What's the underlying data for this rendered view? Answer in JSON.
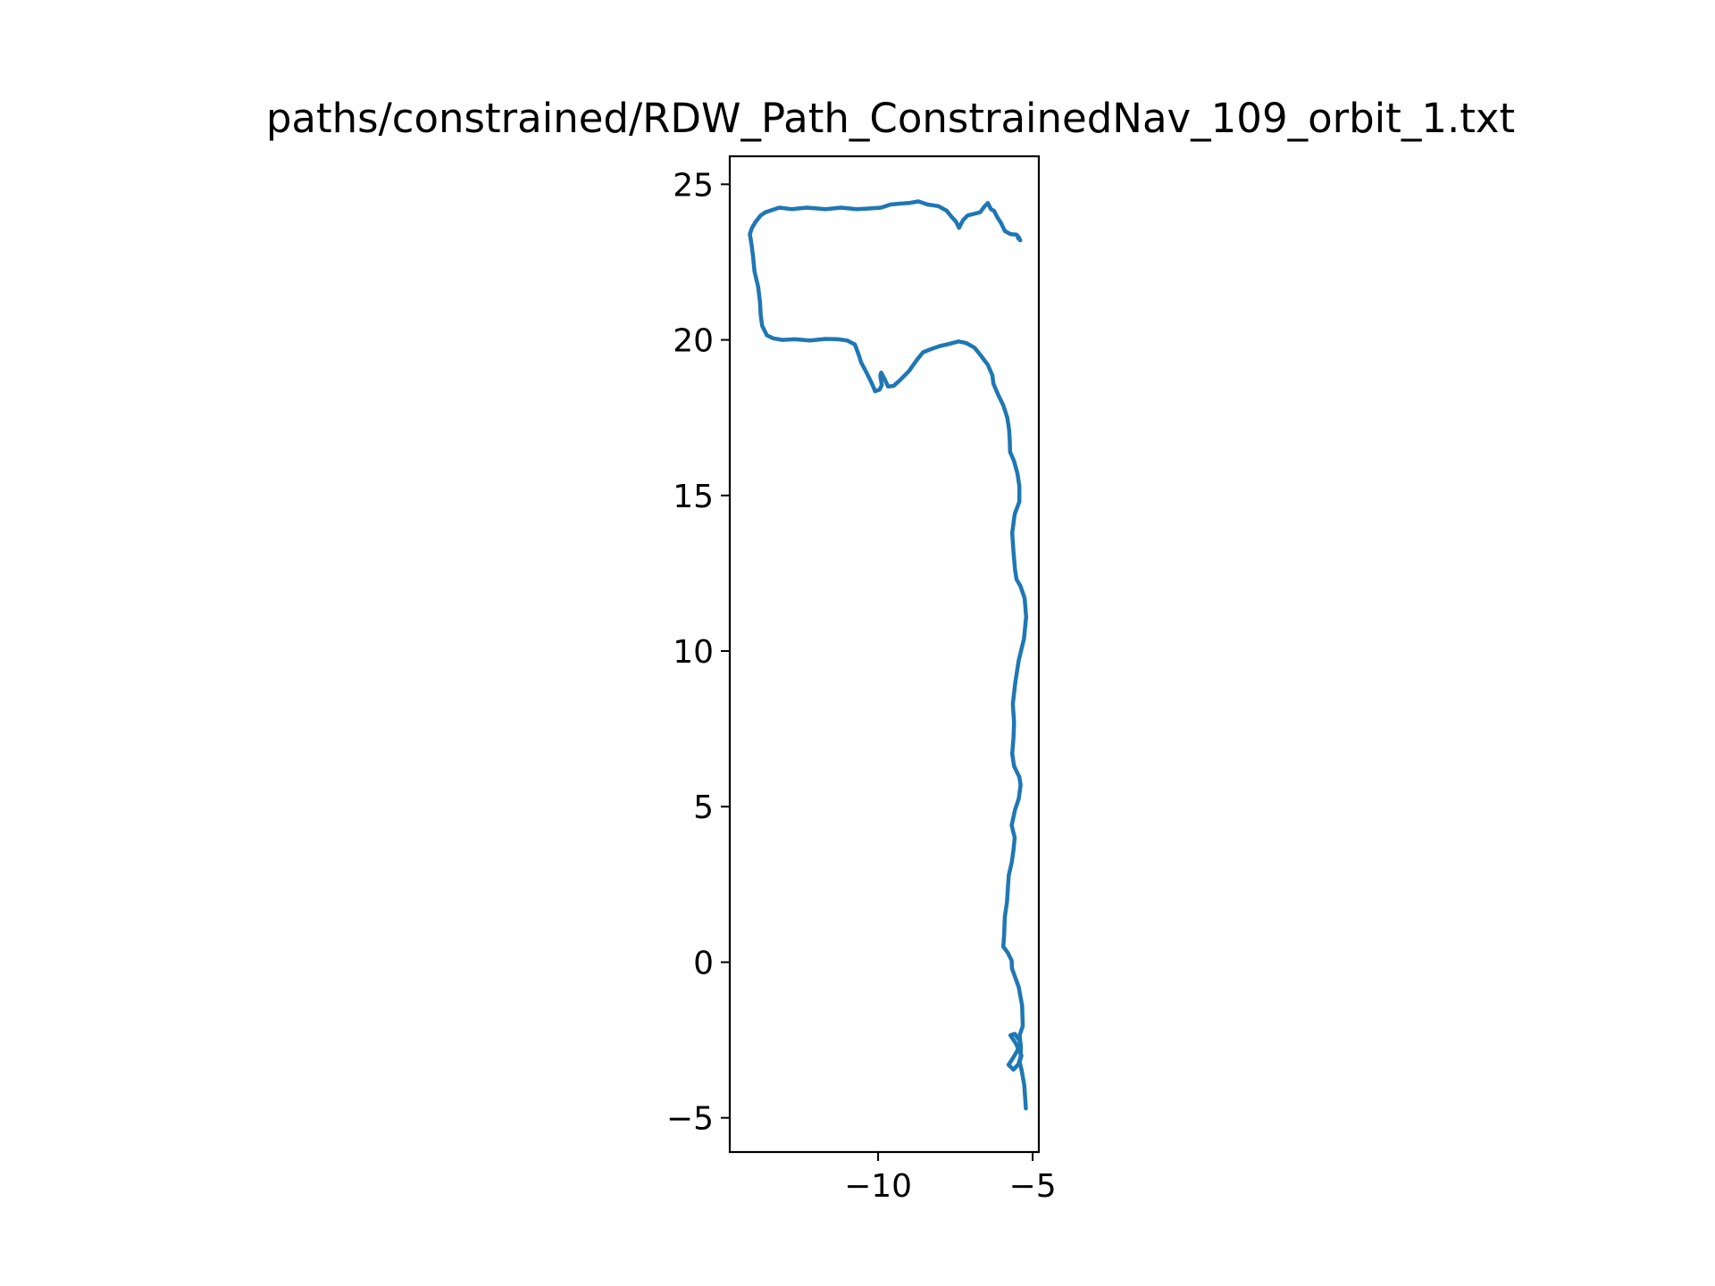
{
  "chart_data": {
    "type": "line",
    "title": "paths/constrained/RDW_Path_ConstrainedNav_109_orbit_1.txt",
    "xlabel": "",
    "ylabel": "",
    "xlim": [
      -14.8,
      -4.8
    ],
    "ylim": [
      -6.1,
      25.9
    ],
    "x_ticks": [
      {
        "value": -10,
        "label": "−10"
      },
      {
        "value": -5,
        "label": "−5"
      }
    ],
    "y_ticks": [
      {
        "value": -5,
        "label": "−5"
      },
      {
        "value": 0,
        "label": "0"
      },
      {
        "value": 5,
        "label": "5"
      },
      {
        "value": 10,
        "label": "10"
      },
      {
        "value": 15,
        "label": "15"
      },
      {
        "value": 20,
        "label": "20"
      },
      {
        "value": 25,
        "label": "25"
      }
    ],
    "grid": false,
    "legend": "none",
    "series": [
      {
        "color": "#1f77b4",
        "x": [
          -5.22,
          -5.27,
          -5.36,
          -5.42,
          -5.36,
          -5.45,
          -5.55,
          -5.72,
          -5.58,
          -5.4,
          -5.5,
          -5.65,
          -5.78,
          -5.62,
          -5.46,
          -5.39,
          -5.38,
          -5.42,
          -5.32,
          -5.34,
          -5.45,
          -5.67,
          -5.68,
          -5.8,
          -5.95,
          -5.92,
          -5.9,
          -5.83,
          -5.8,
          -5.77,
          -5.68,
          -5.62,
          -5.58,
          -5.68,
          -5.57,
          -5.45,
          -5.39,
          -5.43,
          -5.6,
          -5.66,
          -5.62,
          -5.6,
          -5.64,
          -5.56,
          -5.45,
          -5.28,
          -5.21,
          -5.26,
          -5.4,
          -5.52,
          -5.57,
          -5.62,
          -5.66,
          -5.58,
          -5.43,
          -5.43,
          -5.49,
          -5.6,
          -5.73,
          -5.74,
          -5.76,
          -5.82,
          -5.95,
          -6.1,
          -6.27,
          -6.3,
          -6.45,
          -6.68,
          -6.88,
          -7.15,
          -7.4,
          -7.7,
          -8.0,
          -8.3,
          -8.55,
          -8.75,
          -9.0,
          -9.3,
          -9.5,
          -9.68,
          -9.78,
          -9.9,
          -9.93,
          -9.88,
          -9.95,
          -10.1,
          -10.15,
          -10.25,
          -10.4,
          -10.55,
          -10.62,
          -10.75,
          -11.0,
          -11.3,
          -11.7,
          -12.2,
          -12.7,
          -13.1,
          -13.4,
          -13.6,
          -13.75,
          -13.8,
          -13.82,
          -13.88,
          -14.0,
          -14.05,
          -14.1,
          -14.15,
          -14.08,
          -13.96,
          -13.8,
          -13.65,
          -13.5,
          -13.2,
          -12.8,
          -12.3,
          -11.7,
          -11.2,
          -10.7,
          -10.3,
          -9.9,
          -9.6,
          -9.3,
          -9.0,
          -8.7,
          -8.4,
          -8.05,
          -7.78,
          -7.62,
          -7.48,
          -7.38,
          -7.25,
          -7.1,
          -6.9,
          -6.7,
          -6.55,
          -6.45,
          -6.35,
          -6.25,
          -6.15,
          -6.02,
          -5.9,
          -5.72,
          -5.52,
          -5.45,
          -5.4,
          -5.48
        ],
        "y": [
          -4.7,
          -3.95,
          -3.45,
          -3.2,
          -3.0,
          -2.8,
          -2.6,
          -2.35,
          -2.3,
          -2.55,
          -2.85,
          -3.1,
          -3.3,
          -3.45,
          -3.28,
          -3.05,
          -2.7,
          -2.35,
          -2.05,
          -1.4,
          -0.8,
          -0.2,
          0.05,
          0.3,
          0.5,
          0.9,
          1.45,
          1.95,
          2.4,
          2.8,
          3.2,
          3.6,
          4.0,
          4.4,
          4.9,
          5.25,
          5.7,
          5.95,
          6.3,
          6.7,
          7.2,
          7.7,
          8.3,
          9.0,
          9.7,
          10.4,
          11.1,
          11.7,
          12.1,
          12.3,
          12.6,
          13.2,
          13.8,
          14.4,
          14.8,
          15.3,
          15.7,
          16.1,
          16.4,
          16.75,
          17.1,
          17.5,
          17.9,
          18.2,
          18.6,
          18.85,
          19.2,
          19.5,
          19.75,
          19.9,
          19.95,
          19.87,
          19.8,
          19.7,
          19.6,
          19.35,
          19.0,
          18.7,
          18.52,
          18.5,
          18.72,
          18.95,
          18.85,
          18.55,
          18.4,
          18.35,
          18.48,
          18.7,
          19.0,
          19.28,
          19.5,
          19.85,
          19.98,
          20.02,
          20.03,
          19.98,
          20.02,
          20.0,
          20.05,
          20.15,
          20.45,
          20.8,
          21.2,
          21.7,
          22.2,
          22.7,
          23.1,
          23.4,
          23.6,
          23.8,
          24.0,
          24.1,
          24.15,
          24.25,
          24.2,
          24.25,
          24.2,
          24.25,
          24.2,
          24.22,
          24.25,
          24.35,
          24.38,
          24.4,
          24.45,
          24.35,
          24.3,
          24.15,
          23.95,
          23.8,
          23.6,
          23.85,
          24.0,
          24.05,
          24.1,
          24.3,
          24.4,
          24.2,
          24.15,
          23.95,
          23.75,
          23.5,
          23.4,
          23.38,
          23.3,
          23.2,
          23.28
        ]
      }
    ]
  }
}
